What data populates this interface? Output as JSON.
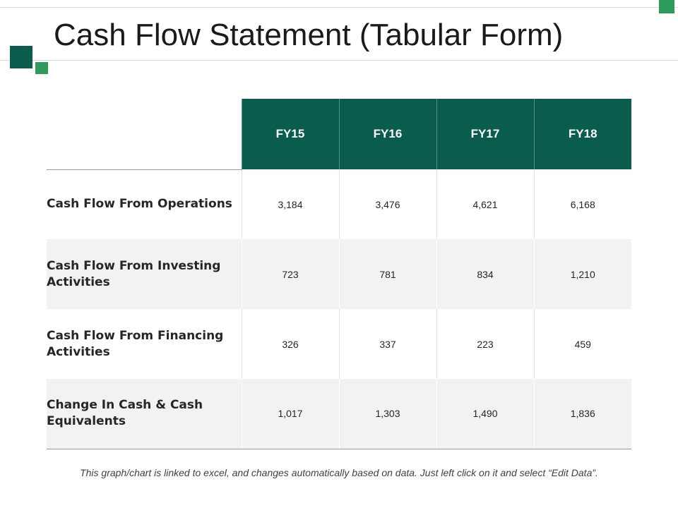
{
  "title": "Cash Flow Statement (Tabular Form)",
  "colors": {
    "header_bg": "#0a5c4c",
    "accent": "#2e9a5c",
    "row_alt": "#f2f2f2"
  },
  "table": {
    "columns": [
      "FY15",
      "FY16",
      "FY17",
      "FY18"
    ],
    "rows": [
      {
        "label": "Cash Flow From Operations",
        "values": [
          "3,184",
          "3,476",
          "4,621",
          "6,168"
        ]
      },
      {
        "label": "Cash Flow From Investing Activities",
        "values": [
          "723",
          "781",
          "834",
          "1,210"
        ]
      },
      {
        "label": "Cash Flow From Financing Activities",
        "values": [
          "326",
          "337",
          "223",
          "459"
        ]
      },
      {
        "label": "Change In Cash & Cash Equivalents",
        "values": [
          "1,017",
          "1,303",
          "1,490",
          "1,836"
        ]
      }
    ]
  },
  "footnote": "This graph/chart is linked to excel, and changes automatically based on data. Just left click on it and select “Edit Data”."
}
